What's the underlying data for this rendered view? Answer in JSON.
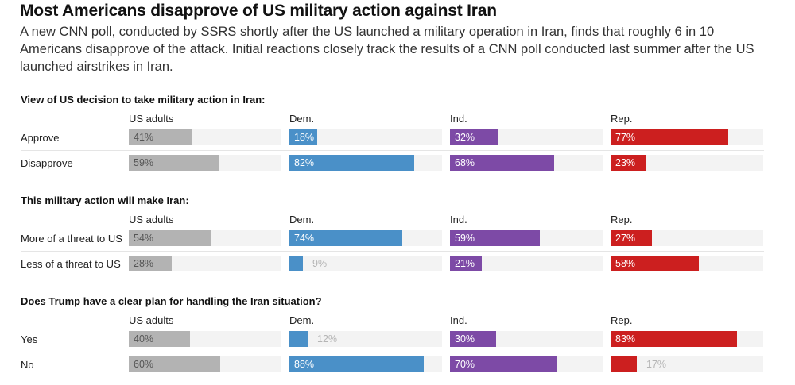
{
  "title": "Most Americans disapprove of US military action against Iran",
  "subtitle": "A new CNN poll, conducted by SSRS shortly after the US launched a military operation in Iran, finds that roughly 6 in 10 Americans disapprove of the attack. Initial reactions closely track the results of a CNN poll conducted last summer after the US launched airstrikes in Iran.",
  "colors": {
    "US adults": "#b3b3b3",
    "Dem.": "#4a90c8",
    "Ind.": "#7d4aa6",
    "Rep.": "#cc1f1f"
  },
  "chart_data": {
    "type": "bar",
    "orientation": "horizontal",
    "columns": [
      "US adults",
      "Dem.",
      "Ind.",
      "Rep."
    ],
    "value_unit": "%",
    "xlim": [
      0,
      100
    ],
    "panels": [
      {
        "question": "View of US decision to take military action in Iran:",
        "rows": [
          {
            "label": "Approve",
            "values": [
              41,
              18,
              32,
              77
            ]
          },
          {
            "label": "Disapprove",
            "values": [
              59,
              82,
              68,
              23
            ]
          }
        ]
      },
      {
        "question": "This military action will make Iran:",
        "rows": [
          {
            "label": "More of a threat to US",
            "values": [
              54,
              74,
              59,
              27
            ]
          },
          {
            "label": "Less of a threat to US",
            "values": [
              28,
              9,
              21,
              58
            ]
          }
        ]
      },
      {
        "question": "Does Trump have a clear plan for handling the Iran situation?",
        "rows": [
          {
            "label": "Yes",
            "values": [
              40,
              12,
              30,
              83
            ]
          },
          {
            "label": "No",
            "values": [
              60,
              88,
              70,
              17
            ]
          }
        ]
      }
    ]
  }
}
